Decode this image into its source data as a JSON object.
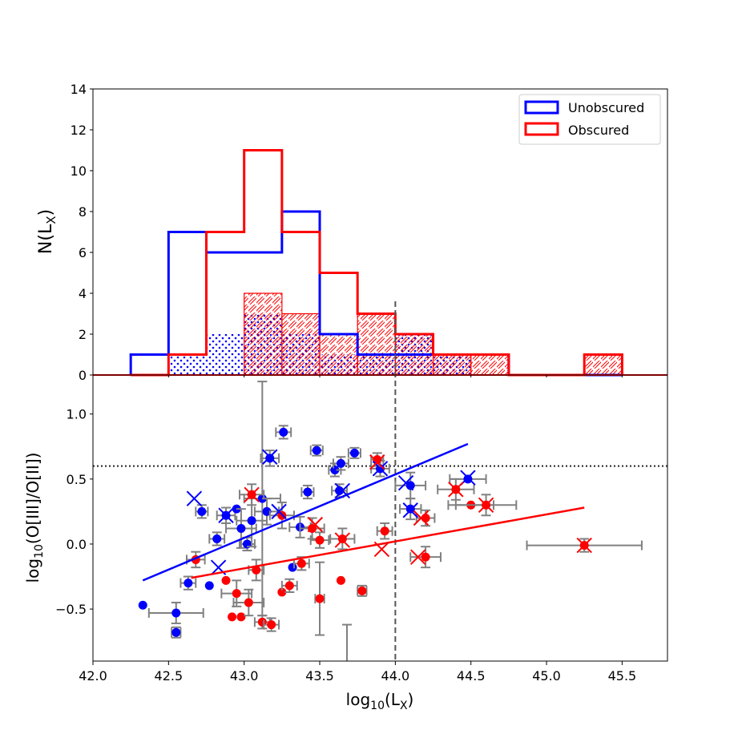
{
  "colors": {
    "unobscured": "#0000ff",
    "obscured": "#ff0000",
    "errorbar": "#808080",
    "reference": "#555555"
  },
  "chart_data": [
    {
      "type": "histogram",
      "ylabel": "N(Lₓ)",
      "ylabel_main": "N(L",
      "ylabel_sub": "X",
      "ylabel_close": ")",
      "ylim": [
        0,
        14
      ],
      "yticks": [
        0,
        2,
        4,
        6,
        8,
        10,
        12,
        14
      ],
      "xlim": [
        42.0,
        45.8
      ],
      "legend": {
        "position": "top-right",
        "entries": [
          {
            "label": "Unobscured",
            "color": "#0000ff"
          },
          {
            "label": "Obscured",
            "color": "#ff0000"
          }
        ]
      },
      "bin_edges": [
        42.25,
        42.5,
        42.75,
        43.0,
        43.25,
        43.5,
        43.75,
        44.0,
        44.25,
        44.5,
        44.75,
        45.0,
        45.25,
        45.5
      ],
      "series": [
        {
          "name": "Unobscured",
          "style": "step",
          "counts": [
            1,
            7,
            6,
            6,
            8,
            2,
            1,
            1,
            1,
            1,
            0,
            0,
            0
          ]
        },
        {
          "name": "Obscured",
          "style": "step",
          "counts": [
            0,
            1,
            7,
            11,
            7,
            5,
            3,
            2,
            1,
            1,
            0,
            0,
            1
          ]
        },
        {
          "name": "Unobscured (subset)",
          "style": "dotted-fill",
          "counts": [
            0,
            1,
            2,
            3,
            2,
            1,
            1,
            2,
            1,
            0,
            0,
            0,
            0
          ]
        },
        {
          "name": "Obscured (subset)",
          "style": "hatched",
          "counts": [
            0,
            0,
            0,
            4,
            3,
            2,
            3,
            2,
            1,
            1,
            0,
            0,
            1
          ]
        }
      ]
    },
    {
      "type": "scatter",
      "xlabel": "log₁₀(Lₓ)",
      "xlabel_main": "log",
      "xlabel_sub1": "10",
      "xlabel_mid": "(L",
      "xlabel_sub2": "X",
      "xlabel_close": ")",
      "ylabel": "log₁₀(O[III]/O[II])",
      "ylabel_main": "log",
      "ylabel_sub": "10",
      "ylabel_rest": "(O[III]/O[II])",
      "xlim": [
        42.0,
        45.8
      ],
      "ylim": [
        -0.9,
        1.3
      ],
      "xticks": [
        42.0,
        42.5,
        43.0,
        43.5,
        44.0,
        44.5,
        45.0,
        45.5
      ],
      "xtick_labels": [
        "42.0",
        "42.5",
        "43.0",
        "43.5",
        "44.0",
        "44.5",
        "45.0",
        "45.5"
      ],
      "yticks": [
        -0.5,
        0.0,
        0.5,
        1.0
      ],
      "ytick_labels": [
        "−0.5",
        "0.0",
        "0.5",
        "1.0"
      ],
      "hline": 0.6,
      "vline": 44.0,
      "fits": [
        {
          "name": "Unobscured",
          "x": [
            42.33,
            44.48
          ],
          "y": [
            -0.28,
            0.77
          ]
        },
        {
          "name": "Obscured",
          "x": [
            42.65,
            45.25
          ],
          "y": [
            -0.26,
            0.28
          ]
        }
      ],
      "series": [
        {
          "name": "Unobscured",
          "points": [
            {
              "x": 42.33,
              "y": -0.47,
              "xerr": 0,
              "yerr": 0
            },
            {
              "x": 42.55,
              "y": -0.53,
              "xerr": 0.18,
              "yerr": 0.08
            },
            {
              "x": 42.55,
              "y": -0.68,
              "xerr": 0.03,
              "yerr": 0.04
            },
            {
              "x": 42.63,
              "y": -0.3,
              "xerr": 0.05,
              "yerr": 0.05
            },
            {
              "x": 42.77,
              "y": -0.32,
              "xerr": 0,
              "yerr": 0
            },
            {
              "x": 42.72,
              "y": 0.25,
              "xerr": 0.04,
              "yerr": 0.05
            },
            {
              "x": 42.82,
              "y": 0.04,
              "xerr": 0.05,
              "yerr": 0.05
            },
            {
              "x": 42.88,
              "y": 0.22,
              "xerr": 0.06,
              "yerr": 0.06
            },
            {
              "x": 42.95,
              "y": 0.27,
              "xerr": 0,
              "yerr": 0
            },
            {
              "x": 42.98,
              "y": 0.12,
              "xerr": 0.1,
              "yerr": 0.15
            },
            {
              "x": 43.02,
              "y": 0.0,
              "xerr": 0.05,
              "yerr": 0.05
            },
            {
              "x": 43.05,
              "y": 0.18,
              "xerr": 0.1,
              "yerr": 0.2
            },
            {
              "x": 43.12,
              "y": 0.35,
              "xerr": 0.12,
              "yerr": 0.9
            },
            {
              "x": 43.15,
              "y": 0.25,
              "xerr": 0.08,
              "yerr": 0.1
            },
            {
              "x": 43.17,
              "y": 0.66,
              "xerr": 0.06,
              "yerr": 0.06
            },
            {
              "x": 43.26,
              "y": 0.86,
              "xerr": 0.05,
              "yerr": 0.05
            },
            {
              "x": 43.32,
              "y": -0.18,
              "xerr": 0,
              "yerr": 0
            },
            {
              "x": 43.37,
              "y": 0.13,
              "xerr": 0.07,
              "yerr": 0.08
            },
            {
              "x": 43.42,
              "y": 0.4,
              "xerr": 0.04,
              "yerr": 0.05
            },
            {
              "x": 43.48,
              "y": 0.72,
              "xerr": 0.04,
              "yerr": 0.04
            },
            {
              "x": 43.6,
              "y": 0.57,
              "xerr": 0.04,
              "yerr": 0.05
            },
            {
              "x": 43.64,
              "y": 0.62,
              "xerr": 0.05,
              "yerr": 0.05
            },
            {
              "x": 43.63,
              "y": 0.41,
              "xerr": 0.05,
              "yerr": 0.05
            },
            {
              "x": 43.73,
              "y": 0.7,
              "xerr": 0.04,
              "yerr": 0.04
            },
            {
              "x": 43.9,
              "y": 0.58,
              "xerr": 0.06,
              "yerr": 0.06
            },
            {
              "x": 44.1,
              "y": 0.27,
              "xerr": 0.07,
              "yerr": 0.08
            },
            {
              "x": 44.1,
              "y": 0.45,
              "xerr": 0.1,
              "yerr": 0.1
            },
            {
              "x": 44.48,
              "y": 0.5,
              "xerr": 0.12,
              "yerr": 0
            }
          ]
        },
        {
          "name": "Obscured",
          "points": [
            {
              "x": 42.68,
              "y": -0.12,
              "xerr": 0.06,
              "yerr": 0.06
            },
            {
              "x": 42.88,
              "y": -0.28,
              "xerr": 0,
              "yerr": 0
            },
            {
              "x": 42.92,
              "y": -0.56,
              "xerr": 0,
              "yerr": 0
            },
            {
              "x": 42.98,
              "y": -0.56,
              "xerr": 0,
              "yerr": 0
            },
            {
              "x": 42.95,
              "y": -0.38,
              "xerr": 0.1,
              "yerr": 0.1
            },
            {
              "x": 43.03,
              "y": -0.45,
              "xerr": 0.1,
              "yerr": 0.1
            },
            {
              "x": 43.05,
              "y": 0.38,
              "xerr": 0.08,
              "yerr": 0.08
            },
            {
              "x": 43.08,
              "y": -0.2,
              "xerr": 0.05,
              "yerr": 0.08
            },
            {
              "x": 43.12,
              "y": -0.6,
              "xerr": 0.05,
              "yerr": 0.05
            },
            {
              "x": 43.18,
              "y": -0.62,
              "xerr": 0.05,
              "yerr": 0.05
            },
            {
              "x": 43.25,
              "y": -0.37,
              "xerr": 0,
              "yerr": 0
            },
            {
              "x": 43.25,
              "y": 0.22,
              "xerr": 0.08,
              "yerr": 0.1
            },
            {
              "x": 43.3,
              "y": -0.32,
              "xerr": 0.05,
              "yerr": 0.05
            },
            {
              "x": 43.38,
              "y": -0.15,
              "xerr": 0.05,
              "yerr": 0.05
            },
            {
              "x": 43.45,
              "y": 0.12,
              "xerr": 0.08,
              "yerr": 0.08
            },
            {
              "x": 43.5,
              "y": -0.42,
              "xerr": 0.03,
              "yerr": 0.28
            },
            {
              "x": 43.5,
              "y": 0.03,
              "xerr": 0.06,
              "yerr": 0.06
            },
            {
              "x": 43.64,
              "y": -0.28,
              "xerr": 0,
              "yerr": 0
            },
            {
              "x": 43.65,
              "y": 0.04,
              "xerr": 0.08,
              "yerr": 0.08
            },
            {
              "x": 43.78,
              "y": -0.36,
              "xerr": 0.03,
              "yerr": 0.04
            },
            {
              "x": 43.88,
              "y": 0.65,
              "xerr": 0.04,
              "yerr": 0.05
            },
            {
              "x": 43.93,
              "y": 0.1,
              "xerr": 0.05,
              "yerr": 0.06
            },
            {
              "x": 44.2,
              "y": 0.2,
              "xerr": 0.06,
              "yerr": 0.06
            },
            {
              "x": 44.2,
              "y": -0.1,
              "xerr": 0.1,
              "yerr": 0.08
            },
            {
              "x": 44.4,
              "y": 0.42,
              "xerr": 0.12,
              "yerr": 0.08
            },
            {
              "x": 44.5,
              "y": 0.3,
              "xerr": 0.15,
              "yerr": 0
            },
            {
              "x": 44.6,
              "y": 0.3,
              "xerr": 0.2,
              "yerr": 0.08
            },
            {
              "x": 45.25,
              "y": -0.01,
              "xerr": 0.38,
              "yerr": 0.05
            }
          ]
        }
      ],
      "crosses": [
        {
          "name": "Unobscured",
          "points": [
            {
              "x": 42.67,
              "y": 0.35
            },
            {
              "x": 42.88,
              "y": 0.22
            },
            {
              "x": 42.83,
              "y": -0.18
            },
            {
              "x": 43.17,
              "y": 0.67
            },
            {
              "x": 43.23,
              "y": 0.25
            },
            {
              "x": 43.65,
              "y": 0.41
            },
            {
              "x": 43.9,
              "y": 0.58
            },
            {
              "x": 44.07,
              "y": 0.47
            },
            {
              "x": 44.1,
              "y": 0.26
            },
            {
              "x": 44.48,
              "y": 0.51
            }
          ]
        },
        {
          "name": "Obscured",
          "points": [
            {
              "x": 43.05,
              "y": 0.38
            },
            {
              "x": 43.47,
              "y": 0.15
            },
            {
              "x": 43.65,
              "y": 0.03
            },
            {
              "x": 43.88,
              "y": 0.63
            },
            {
              "x": 43.91,
              "y": -0.04
            },
            {
              "x": 44.17,
              "y": 0.2
            },
            {
              "x": 44.15,
              "y": -0.1
            },
            {
              "x": 44.4,
              "y": 0.42
            },
            {
              "x": 44.6,
              "y": 0.3
            },
            {
              "x": 45.25,
              "y": -0.01
            }
          ]
        }
      ]
    }
  ]
}
